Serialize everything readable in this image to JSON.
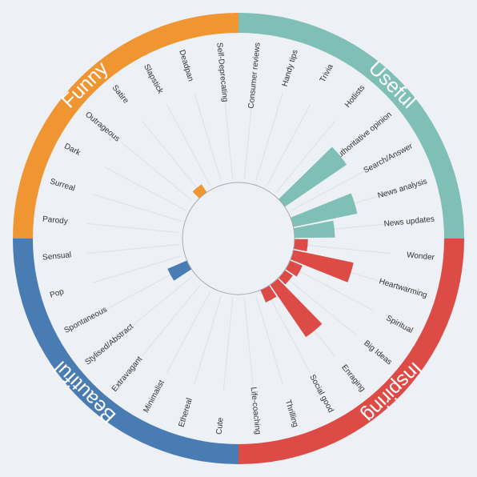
{
  "chart_data": {
    "type": "radial_bar",
    "rlim": [
      0,
      100
    ],
    "groups": [
      {
        "name": "Useful",
        "color": "#7fbfb5",
        "categories": [
          "Consumer reviews",
          "Handy tips",
          "Trivia",
          "Hotlists",
          "Authoritative opinion",
          "Search/Answer",
          "News analysis",
          "News updates"
        ],
        "values": [
          0,
          0,
          0,
          0,
          78,
          0,
          68,
          42
        ]
      },
      {
        "name": "Inspiring",
        "color": "#dc4b46",
        "categories": [
          "Wonder",
          "Heartwarming",
          "Spiritual",
          "Big Ideas",
          "Enraging",
          "Social good",
          "Thrilling",
          "Life-coaching"
        ],
        "values": [
          14,
          64,
          14,
          10,
          66,
          14,
          0,
          0
        ]
      },
      {
        "name": "Beautiful",
        "color": "#4a7cb4",
        "categories": [
          "Cute",
          "Ethereal",
          "Minimalist",
          "Extravagant",
          "Stylised/Abstract",
          "Spontaneous",
          "Pop",
          "Sensual"
        ],
        "values": [
          0,
          0,
          0,
          0,
          0,
          22,
          0,
          0
        ]
      },
      {
        "name": "Funny",
        "color": "#ef9532",
        "categories": [
          "Parody",
          "Surreal",
          "Dark",
          "Outrageous",
          "Satire",
          "Slapstick",
          "Deadpan",
          "Self-Deprecating"
        ],
        "values": [
          0,
          0,
          0,
          0,
          10,
          0,
          0,
          0
        ]
      }
    ]
  }
}
